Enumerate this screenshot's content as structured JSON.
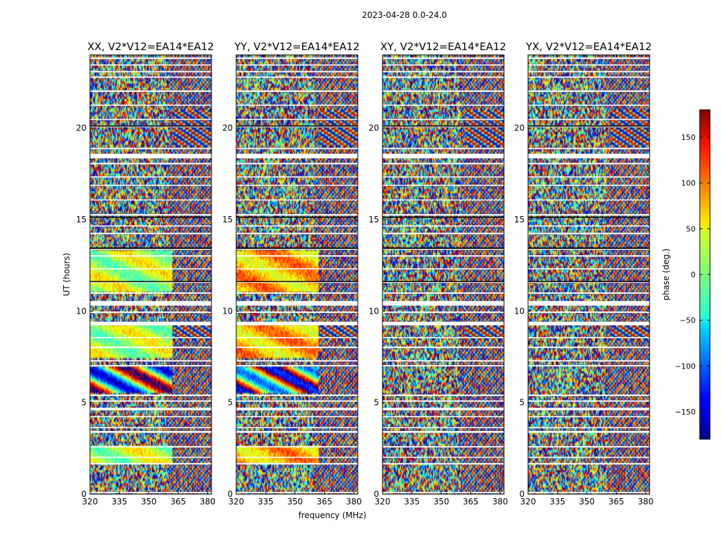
{
  "figure": {
    "suptitle": "2023-04-28 0.0-24.0",
    "xlabel": "frequency (MHz)",
    "ylabel": "UT (hours)",
    "colorbar_label": "phase (deg.)"
  },
  "chart_data": {
    "type": "heatmap",
    "colormap": "jet",
    "xlim": [
      320,
      382
    ],
    "ylim": [
      0,
      24
    ],
    "xticks": [
      320,
      335,
      350,
      365,
      380
    ],
    "yticks": [
      0,
      5,
      10,
      15,
      20
    ],
    "color_range": [
      -180,
      180
    ],
    "colorbar_ticks": [
      150,
      100,
      50,
      0,
      -50,
      -100,
      -150
    ],
    "panels": [
      {
        "name": "XX",
        "title": "XX, V2*V12=EA14*EA12"
      },
      {
        "name": "YY",
        "title": "YY, V2*V12=EA14*EA12"
      },
      {
        "name": "XY",
        "title": "XY, V2*V12=EA14*EA12"
      },
      {
        "name": "YX",
        "title": "YX, V2*V12=EA14*EA12"
      }
    ],
    "gaps_hours": [
      [
        0.05,
        0.12
      ],
      [
        1.62,
        1.7
      ],
      [
        1.98,
        2.04
      ],
      [
        2.55,
        2.62
      ],
      [
        3.35,
        3.45
      ],
      [
        3.6,
        3.66
      ],
      [
        4.2,
        4.26
      ],
      [
        4.58,
        4.72
      ],
      [
        5.05,
        5.12
      ],
      [
        5.36,
        5.44
      ],
      [
        6.98,
        7.05
      ],
      [
        7.25,
        7.32
      ],
      [
        7.98,
        8.06
      ],
      [
        8.52,
        8.58
      ],
      [
        9.22,
        9.42
      ],
      [
        9.9,
        9.98
      ],
      [
        10.3,
        10.55
      ],
      [
        10.95,
        11.02
      ],
      [
        11.55,
        11.6
      ],
      [
        12.28,
        12.34
      ],
      [
        12.98,
        13.05
      ],
      [
        13.35,
        13.42
      ],
      [
        14.2,
        14.28
      ],
      [
        14.62,
        14.68
      ],
      [
        15.22,
        15.3
      ],
      [
        16.05,
        16.1
      ],
      [
        16.85,
        16.9
      ],
      [
        17.3,
        17.36
      ],
      [
        18.02,
        18.1
      ],
      [
        18.35,
        18.6
      ],
      [
        18.85,
        18.92
      ],
      [
        20.05,
        20.12
      ],
      [
        20.45,
        20.5
      ],
      [
        21.22,
        21.28
      ],
      [
        21.98,
        22.06
      ],
      [
        22.75,
        22.82
      ],
      [
        23.05,
        23.12
      ],
      [
        23.42,
        23.48
      ],
      [
        23.78,
        23.86
      ]
    ],
    "flagged_hours": [
      [
        13.4,
        13.48
      ],
      [
        15.1,
        15.16
      ],
      [
        11.6,
        11.64
      ],
      [
        20.1,
        20.14
      ]
    ]
  }
}
